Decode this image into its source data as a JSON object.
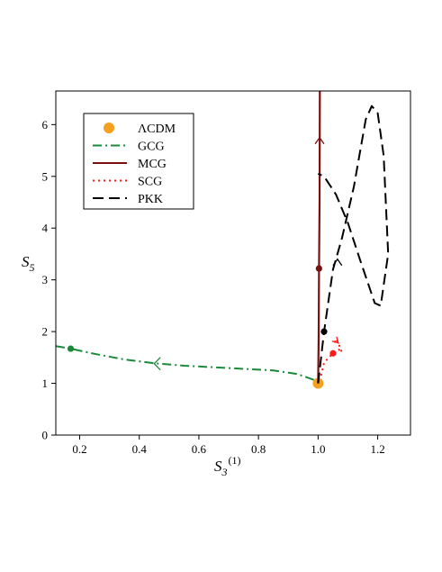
{
  "chart_data": {
    "type": "line",
    "xlabel": "S",
    "xlabel_sub": "3",
    "xlabel_sup": "(1)",
    "ylabel": "S",
    "ylabel_sub": "5",
    "xlim": [
      0.12,
      1.31
    ],
    "ylim": [
      0,
      6.65
    ],
    "xticks": [
      0.2,
      0.4,
      0.6,
      0.8,
      1.0,
      1.2
    ],
    "xtick_labels": [
      "0.2",
      "0.4",
      "0.6",
      "0.8",
      "1.0",
      "1.2"
    ],
    "yticks": [
      0,
      1,
      2,
      3,
      4,
      5,
      6
    ],
    "ytick_labels": [
      "0",
      "1",
      "2",
      "3",
      "4",
      "5",
      "6"
    ],
    "grid": false,
    "legend_position": "top-left",
    "series": [
      {
        "name": "ΛCDM",
        "style": "point",
        "color": "#f5a01e",
        "points": [
          [
            1.0,
            1.0
          ]
        ]
      },
      {
        "name": "GCG",
        "style": "dashdot",
        "color": "#1a8a3a",
        "points": [
          [
            0.12,
            1.72
          ],
          [
            0.17,
            1.67
          ],
          [
            0.25,
            1.57
          ],
          [
            0.35,
            1.46
          ],
          [
            0.45,
            1.39
          ],
          [
            0.55,
            1.34
          ],
          [
            0.65,
            1.31
          ],
          [
            0.75,
            1.28
          ],
          [
            0.85,
            1.25
          ],
          [
            0.93,
            1.18
          ],
          [
            1.0,
            1.04
          ]
        ],
        "markers": [
          [
            0.17,
            1.67
          ]
        ],
        "arrow": {
          "at": [
            0.45,
            1.38
          ],
          "direction": "left"
        }
      },
      {
        "name": "MCG",
        "style": "solid",
        "color": "#7a1010",
        "points": [
          [
            1.0,
            1.0
          ],
          [
            1.002,
            1.9
          ],
          [
            1.003,
            3.22
          ],
          [
            1.005,
            4.5
          ],
          [
            1.006,
            6.65
          ]
        ],
        "markers": [
          [
            1.003,
            3.22
          ]
        ],
        "arrow": {
          "at": [
            1.005,
            5.75
          ],
          "direction": "up"
        }
      },
      {
        "name": "SCG",
        "style": "dotted",
        "color": "#ff1a1a",
        "points": [
          [
            1.01,
            1.15
          ],
          [
            1.02,
            1.4
          ],
          [
            1.05,
            1.58
          ],
          [
            1.07,
            1.65
          ],
          [
            1.08,
            1.6
          ],
          [
            1.065,
            1.82
          ],
          [
            1.055,
            1.85
          ],
          [
            1.06,
            1.72
          ]
        ],
        "markers": [
          [
            1.05,
            1.58
          ]
        ],
        "arrow": {
          "at": [
            1.068,
            1.78
          ],
          "direction": "down-right"
        }
      },
      {
        "name": "PKK",
        "style": "dashed",
        "color": "#000000",
        "points": [
          [
            1.0,
            1.0
          ],
          [
            1.02,
            2.0
          ],
          [
            1.05,
            3.2
          ],
          [
            1.08,
            3.8
          ],
          [
            1.12,
            4.8
          ],
          [
            1.16,
            6.1
          ],
          [
            1.18,
            6.36
          ],
          [
            1.2,
            6.22
          ],
          [
            1.22,
            5.4
          ],
          [
            1.235,
            3.5
          ],
          [
            1.21,
            2.5
          ],
          [
            1.19,
            2.55
          ],
          [
            1.14,
            3.4
          ],
          [
            1.1,
            4.1
          ],
          [
            1.06,
            4.65
          ],
          [
            1.02,
            5.0
          ],
          [
            1.0,
            5.05
          ]
        ],
        "markers": [
          [
            1.02,
            2.0
          ]
        ],
        "arrow": {
          "at": [
            1.065,
            3.4
          ],
          "direction": "up"
        }
      }
    ]
  }
}
